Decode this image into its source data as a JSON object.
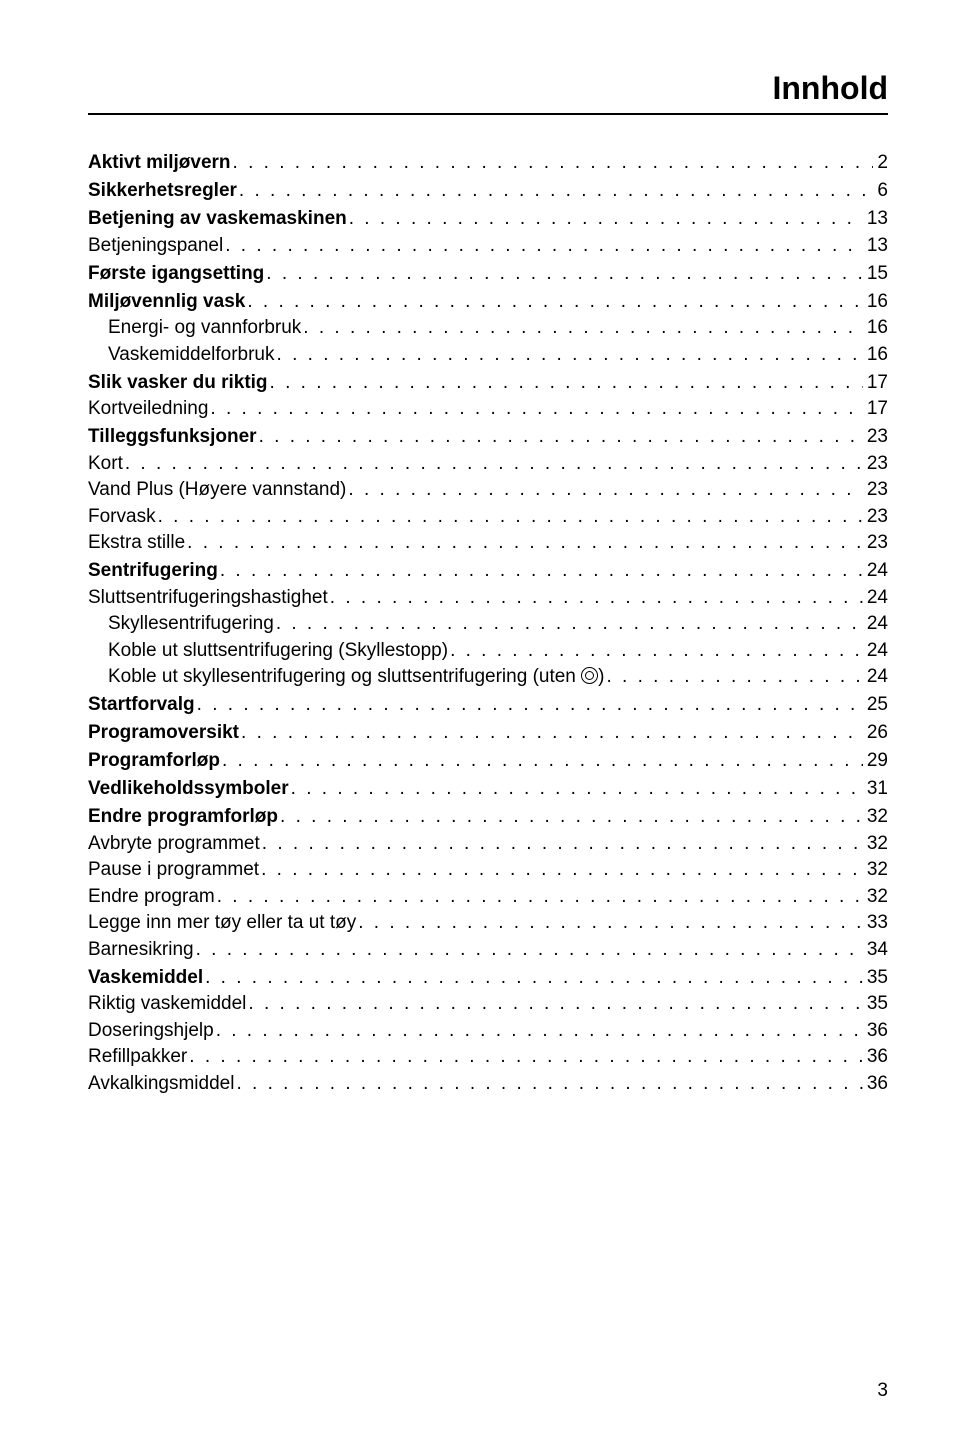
{
  "title": "Innhold",
  "page_number": "3",
  "typography": {
    "title_fontsize": 32,
    "body_fontsize": 19,
    "font_family": "Arial"
  },
  "colors": {
    "text": "#000000",
    "background": "#ffffff",
    "rule": "#000000"
  },
  "entries": [
    {
      "label": "Aktivt miljøvern",
      "page": "2",
      "bold": true,
      "indent": 0,
      "top_space": false
    },
    {
      "label": "Sikkerhetsregler",
      "page": "6",
      "bold": true,
      "indent": 0,
      "top_space": true
    },
    {
      "label": "Betjening av vaskemaskinen",
      "page": "13",
      "bold": true,
      "indent": 0,
      "top_space": true
    },
    {
      "label": "Betjeningspanel",
      "page": "13",
      "bold": false,
      "indent": 0,
      "top_space": false
    },
    {
      "label": "Første igangsetting",
      "page": "15",
      "bold": true,
      "indent": 0,
      "top_space": true
    },
    {
      "label": "Miljøvennlig vask",
      "page": "16",
      "bold": true,
      "indent": 0,
      "top_space": true
    },
    {
      "label": "Energi- og vannforbruk",
      "page": "16",
      "bold": false,
      "indent": 1,
      "top_space": false
    },
    {
      "label": "Vaskemiddelforbruk",
      "page": "16",
      "bold": false,
      "indent": 1,
      "top_space": false
    },
    {
      "label": "Slik vasker du riktig",
      "page": "17",
      "bold": true,
      "indent": 0,
      "top_space": true
    },
    {
      "label": "Kortveiledning",
      "page": "17",
      "bold": false,
      "indent": 0,
      "top_space": false
    },
    {
      "label": "Tilleggsfunksjoner",
      "page": "23",
      "bold": true,
      "indent": 0,
      "top_space": true
    },
    {
      "label": "Kort",
      "page": "23",
      "bold": false,
      "indent": 0,
      "top_space": false
    },
    {
      "label": "Vand Plus (Høyere vannstand)",
      "page": "23",
      "bold": false,
      "indent": 0,
      "top_space": false
    },
    {
      "label": "Forvask",
      "page": "23",
      "bold": false,
      "indent": 0,
      "top_space": false
    },
    {
      "label": "Ekstra stille",
      "page": "23",
      "bold": false,
      "indent": 0,
      "top_space": false
    },
    {
      "label": "Sentrifugering",
      "page": "24",
      "bold": true,
      "indent": 0,
      "top_space": true
    },
    {
      "label": "Sluttsentrifugeringshastighet",
      "page": "24",
      "bold": false,
      "indent": 0,
      "top_space": false
    },
    {
      "label": "Skyllesentrifugering",
      "page": "24",
      "bold": false,
      "indent": 1,
      "top_space": false
    },
    {
      "label": "Koble ut sluttsentrifugering (Skyllestopp)",
      "page": "24",
      "bold": false,
      "indent": 1,
      "top_space": false
    },
    {
      "label": "Koble ut skyllesentrifugering og sluttsentrifugering (uten ",
      "label_suffix": ")",
      "has_icon": true,
      "page": "24",
      "bold": false,
      "indent": 1,
      "top_space": false
    },
    {
      "label": "Startforvalg",
      "page": "25",
      "bold": true,
      "indent": 0,
      "top_space": true
    },
    {
      "label": "Programoversikt",
      "page": "26",
      "bold": true,
      "indent": 0,
      "top_space": true
    },
    {
      "label": "Programforløp",
      "page": "29",
      "bold": true,
      "indent": 0,
      "top_space": true
    },
    {
      "label": "Vedlikeholdssymboler",
      "page": "31",
      "bold": true,
      "indent": 0,
      "top_space": true
    },
    {
      "label": "Endre programforløp",
      "page": "32",
      "bold": true,
      "indent": 0,
      "top_space": true
    },
    {
      "label": "Avbryte programmet",
      "page": "32",
      "bold": false,
      "indent": 0,
      "top_space": false
    },
    {
      "label": "Pause i programmet",
      "page": "32",
      "bold": false,
      "indent": 0,
      "top_space": false
    },
    {
      "label": "Endre program",
      "page": "32",
      "bold": false,
      "indent": 0,
      "top_space": false
    },
    {
      "label": "Legge inn mer tøy eller ta ut tøy",
      "page": "33",
      "bold": false,
      "indent": 0,
      "top_space": false
    },
    {
      "label": "Barnesikring",
      "page": "34",
      "bold": false,
      "indent": 0,
      "top_space": false
    },
    {
      "label": "Vaskemiddel",
      "page": "35",
      "bold": true,
      "indent": 0,
      "top_space": true
    },
    {
      "label": "Riktig vaskemiddel",
      "page": "35",
      "bold": false,
      "indent": 0,
      "top_space": false
    },
    {
      "label": "Doseringshjelp",
      "page": "36",
      "bold": false,
      "indent": 0,
      "top_space": false
    },
    {
      "label": "Refillpakker",
      "page": "36",
      "bold": false,
      "indent": 0,
      "top_space": false
    },
    {
      "label": "Avkalkingsmiddel",
      "page": "36",
      "bold": false,
      "indent": 0,
      "top_space": false
    }
  ]
}
